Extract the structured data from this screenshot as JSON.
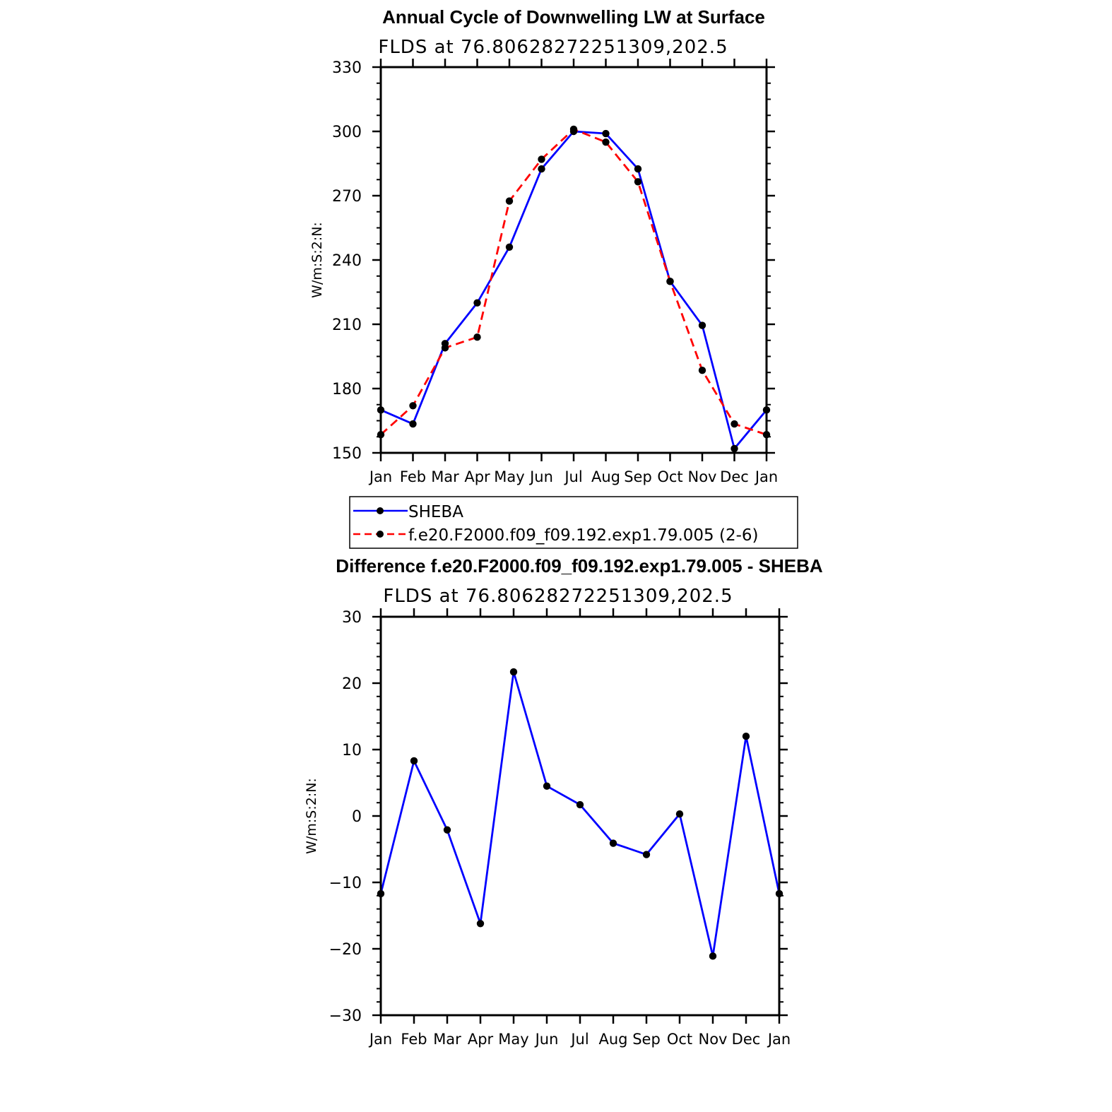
{
  "chart_data": [
    {
      "type": "line",
      "title": "Annual Cycle of Downwelling LW at Surface",
      "subtitle": "FLDS at 76.80628272251309,202.5",
      "ylabel": "W/m:S:2:N:",
      "ylim": [
        150,
        330
      ],
      "yticks": [
        150,
        180,
        210,
        240,
        270,
        300,
        330
      ],
      "categories": [
        "Jan",
        "Feb",
        "Mar",
        "Apr",
        "May",
        "Jun",
        "Jul",
        "Aug",
        "Sep",
        "Oct",
        "Nov",
        "Dec",
        "Jan"
      ],
      "series": [
        {
          "name": "SHEBA",
          "color": "#0000ff",
          "dash": false,
          "values": [
            170,
            163.5,
            201,
            220,
            246,
            282.5,
            300,
            299,
            282.5,
            230,
            209.5,
            152,
            170
          ]
        },
        {
          "name": "f.e20.F2000.f09_f09.192.exp1.79.005 (2-6)",
          "color": "#ff0000",
          "dash": true,
          "values": [
            158.5,
            172,
            199,
            204,
            267.5,
            287,
            301,
            295,
            276.5,
            230,
            188.5,
            163.5,
            158.5
          ]
        }
      ],
      "legend": "bottom"
    },
    {
      "type": "line",
      "title": "Difference f.e20.F2000.f09_f09.192.exp1.79.005 - SHEBA",
      "subtitle": "FLDS at 76.80628272251309,202.5",
      "ylabel": "W/m:S:2:N:",
      "ylim": [
        -30,
        30
      ],
      "yticks": [
        -30,
        -20,
        -10,
        0,
        10,
        20,
        30
      ],
      "ytick_labels": [
        "−30",
        "−20",
        "−10",
        "0",
        "10",
        "20",
        "30"
      ],
      "categories": [
        "Jan",
        "Feb",
        "Mar",
        "Apr",
        "May",
        "Jun",
        "Jul",
        "Aug",
        "Sep",
        "Oct",
        "Nov",
        "Dec",
        "Jan"
      ],
      "series": [
        {
          "color": "#0000ff",
          "dash": false,
          "values": [
            -11.7,
            8.3,
            -2.1,
            -16.2,
            21.7,
            4.5,
            1.7,
            -4.1,
            -5.8,
            0.3,
            -21.1,
            12.0,
            -11.7
          ]
        }
      ]
    }
  ]
}
